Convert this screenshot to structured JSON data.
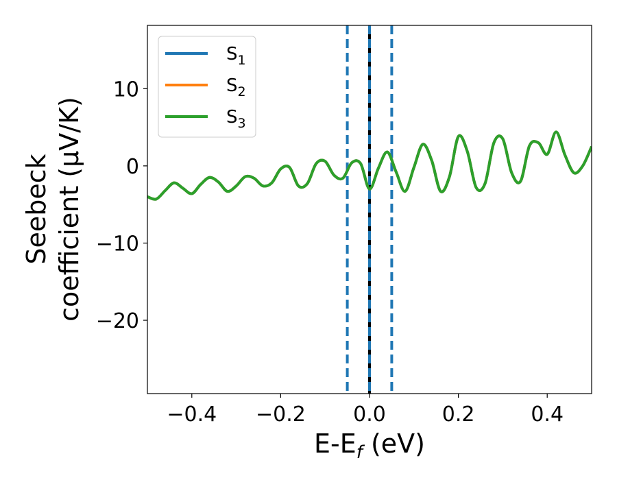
{
  "chart_data": {
    "type": "line",
    "xlabel_main": "E-E",
    "xlabel_sub": "f",
    "xlabel_tail": " (eV)",
    "ylabel_line1": "Seebeck",
    "ylabel_line2": "coefficient  (μV/K)",
    "xlim": [
      -0.5,
      0.5
    ],
    "ylim": [
      -29.5,
      18.2
    ],
    "xticks": [
      -0.4,
      -0.2,
      0.0,
      0.2,
      0.4
    ],
    "xtick_labels": [
      "−0.4",
      "−0.2",
      "0.0",
      "0.2",
      "0.4"
    ],
    "yticks": [
      -20,
      -10,
      0,
      10
    ],
    "ytick_labels": [
      "−20",
      "−10",
      "0",
      "10"
    ],
    "grid": false,
    "legend_placement": "upper-left",
    "series": [
      {
        "name": "S",
        "subscript": "1",
        "color": "#1f77b4",
        "x": [
          -0.5,
          -0.48,
          -0.46,
          -0.44,
          -0.42,
          -0.4,
          -0.38,
          -0.36,
          -0.34,
          -0.32,
          -0.3,
          -0.28,
          -0.26,
          -0.24,
          -0.22,
          -0.2,
          -0.18,
          -0.16,
          -0.14,
          -0.12,
          -0.1,
          -0.08,
          -0.06,
          -0.04,
          -0.02,
          0.0,
          0.02,
          0.04,
          0.06,
          0.08,
          0.1,
          0.12,
          0.14,
          0.16,
          0.18,
          0.2,
          0.22,
          0.24,
          0.26,
          0.28,
          0.3,
          0.32,
          0.34,
          0.36,
          0.38,
          0.4,
          0.42,
          0.44,
          0.46,
          0.48,
          0.5
        ],
        "y": [
          -4.0,
          -4.3,
          -3.2,
          -2.2,
          -2.9,
          -3.6,
          -2.4,
          -1.5,
          -2.1,
          -3.3,
          -2.6,
          -1.4,
          -1.6,
          -2.6,
          -2.2,
          -0.4,
          -0.2,
          -2.6,
          -2.3,
          0.3,
          0.6,
          -1.2,
          -1.6,
          0.4,
          0.3,
          -3.0,
          -0.3,
          1.8,
          -0.8,
          -3.3,
          -0.2,
          2.8,
          0.7,
          -3.3,
          -1.4,
          3.8,
          1.9,
          -2.8,
          -2.3,
          3.0,
          3.5,
          -0.9,
          -2.0,
          2.6,
          3.0,
          1.5,
          4.4,
          1.4,
          -0.9,
          0.0,
          2.5
        ]
      },
      {
        "name": "S",
        "subscript": "2",
        "color": "#ff7f0e",
        "x": [
          -0.5,
          -0.48,
          -0.46,
          -0.44,
          -0.42,
          -0.4,
          -0.38,
          -0.36,
          -0.34,
          -0.32,
          -0.3,
          -0.28,
          -0.26,
          -0.24,
          -0.22,
          -0.2,
          -0.18,
          -0.16,
          -0.14,
          -0.12,
          -0.1,
          -0.08,
          -0.06,
          -0.04,
          -0.02,
          0.0,
          0.02,
          0.04,
          0.06,
          0.08,
          0.1,
          0.12,
          0.14,
          0.16,
          0.18,
          0.2,
          0.22,
          0.24,
          0.26,
          0.28,
          0.3,
          0.32,
          0.34,
          0.36,
          0.38,
          0.4,
          0.42,
          0.44,
          0.46,
          0.48,
          0.5
        ],
        "y": [
          -4.0,
          -4.3,
          -3.2,
          -2.2,
          -2.9,
          -3.6,
          -2.4,
          -1.5,
          -2.1,
          -3.3,
          -2.6,
          -1.4,
          -1.6,
          -2.6,
          -2.2,
          -0.4,
          -0.2,
          -2.6,
          -2.3,
          0.3,
          0.6,
          -1.2,
          -1.6,
          0.4,
          0.3,
          -3.0,
          -0.3,
          1.8,
          -0.8,
          -3.3,
          -0.2,
          2.8,
          0.7,
          -3.3,
          -1.4,
          3.8,
          1.9,
          -2.8,
          -2.3,
          3.0,
          3.5,
          -0.9,
          -2.0,
          2.6,
          3.0,
          1.5,
          4.4,
          1.4,
          -0.9,
          0.0,
          2.5
        ]
      },
      {
        "name": "S",
        "subscript": "3",
        "color": "#2ca02c",
        "x": [
          -0.5,
          -0.48,
          -0.46,
          -0.44,
          -0.42,
          -0.4,
          -0.38,
          -0.36,
          -0.34,
          -0.32,
          -0.3,
          -0.28,
          -0.26,
          -0.24,
          -0.22,
          -0.2,
          -0.18,
          -0.16,
          -0.14,
          -0.12,
          -0.1,
          -0.08,
          -0.06,
          -0.04,
          -0.02,
          0.0,
          0.02,
          0.04,
          0.06,
          0.08,
          0.1,
          0.12,
          0.14,
          0.16,
          0.18,
          0.2,
          0.22,
          0.24,
          0.26,
          0.28,
          0.3,
          0.32,
          0.34,
          0.36,
          0.38,
          0.4,
          0.42,
          0.44,
          0.46,
          0.48,
          0.5
        ],
        "y": [
          -4.0,
          -4.3,
          -3.2,
          -2.2,
          -2.9,
          -3.6,
          -2.4,
          -1.5,
          -2.1,
          -3.3,
          -2.6,
          -1.4,
          -1.6,
          -2.6,
          -2.2,
          -0.4,
          -0.2,
          -2.6,
          -2.3,
          0.3,
          0.6,
          -1.2,
          -1.6,
          0.4,
          0.3,
          -3.0,
          -0.3,
          1.8,
          -0.8,
          -3.3,
          -0.2,
          2.8,
          0.7,
          -3.3,
          -1.4,
          3.8,
          1.9,
          -2.8,
          -2.3,
          3.0,
          3.5,
          -0.9,
          -2.0,
          2.6,
          3.0,
          1.5,
          4.4,
          1.4,
          -0.9,
          0.0,
          2.5
        ]
      }
    ],
    "vertical_lines": [
      {
        "x": -0.05,
        "style": "dashed",
        "color": "#1f77b4"
      },
      {
        "x": 0.0,
        "style": "solid",
        "color": "#000000"
      },
      {
        "x": 0.0,
        "style": "dashed",
        "color": "#1f77b4"
      },
      {
        "x": 0.05,
        "style": "dashed",
        "color": "#1f77b4"
      }
    ]
  }
}
